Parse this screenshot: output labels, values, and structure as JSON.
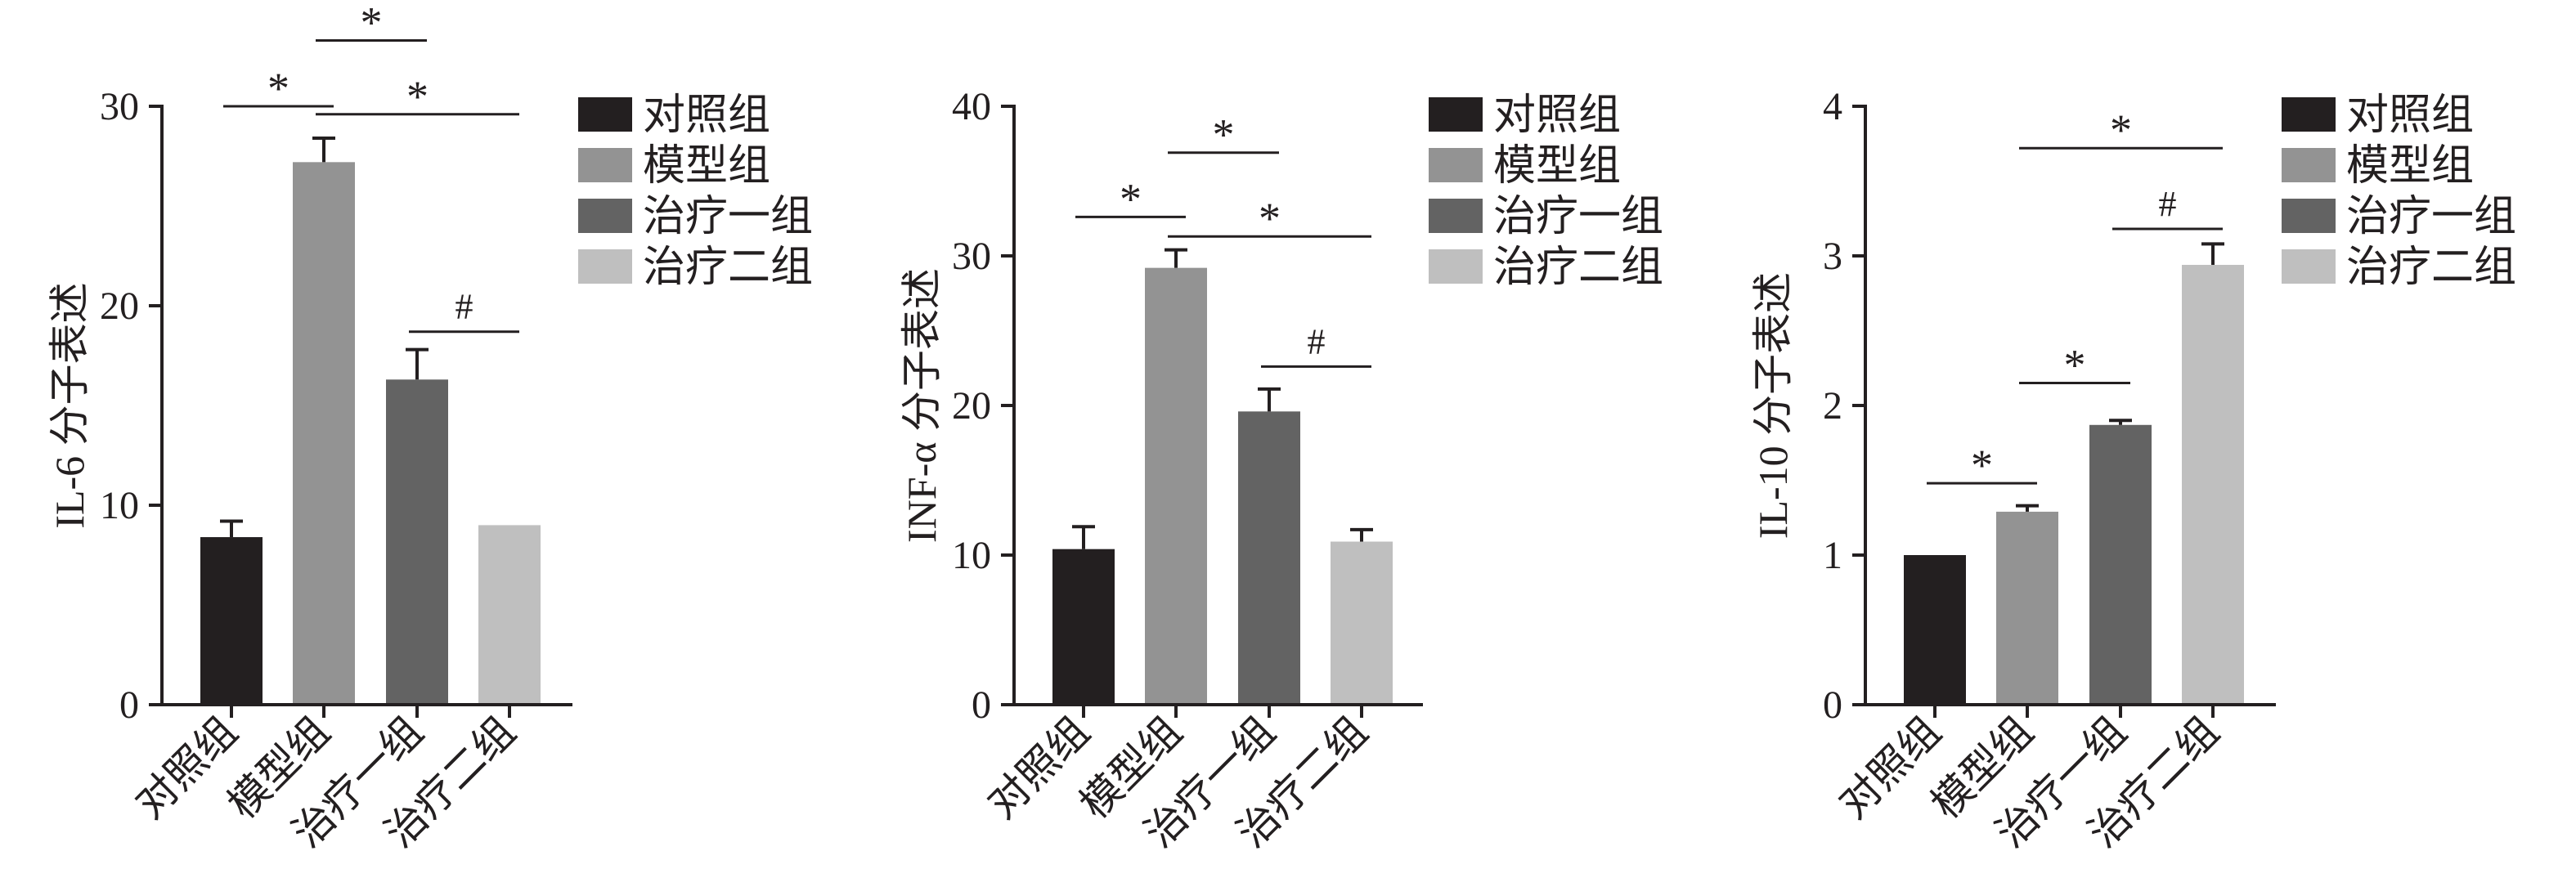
{
  "legend": {
    "labels": [
      "对照组",
      "模型组",
      "治疗一组",
      "治疗二组"
    ],
    "colors": [
      "#231f20",
      "#939393",
      "#636363",
      "#bfbfbf"
    ]
  },
  "chart_data": [
    {
      "type": "bar",
      "ylabel": "IL-6 分子表述",
      "ylim": [
        0,
        30
      ],
      "yticks": [
        0,
        10,
        20,
        30
      ],
      "ytick_labels": [
        "0",
        "10",
        "20",
        "30"
      ],
      "categories": [
        "对照组",
        "模型组",
        "治疗一组",
        "治疗二组"
      ],
      "values": [
        8.4,
        27.2,
        16.3,
        9.0
      ],
      "errors": [
        0.8,
        1.2,
        1.5,
        0
      ],
      "significance": [
        {
          "from": 0,
          "to": 1,
          "y": 30.0,
          "label": "*"
        },
        {
          "from": 1,
          "to": 2,
          "y": 33.3,
          "label": "*"
        },
        {
          "from": 1,
          "to": 3,
          "y": 29.6,
          "label": "*"
        },
        {
          "from": 2,
          "to": 3,
          "y": 18.7,
          "label": "#"
        }
      ]
    },
    {
      "type": "bar",
      "ylabel": "INF-α 分子表述",
      "ylim": [
        0,
        40
      ],
      "yticks": [
        0,
        10,
        20,
        30,
        40
      ],
      "ytick_labels": [
        "0",
        "10",
        "20",
        "30",
        "40"
      ],
      "categories": [
        "对照组",
        "模型组",
        "治疗一组",
        "治疗二组"
      ],
      "values": [
        10.4,
        29.2,
        19.6,
        10.9
      ],
      "errors": [
        1.5,
        1.2,
        1.5,
        0.8
      ],
      "significance": [
        {
          "from": 0,
          "to": 1,
          "y": 32.6,
          "label": "*"
        },
        {
          "from": 1,
          "to": 2,
          "y": 36.9,
          "label": "*"
        },
        {
          "from": 1,
          "to": 3,
          "y": 31.3,
          "label": "*"
        },
        {
          "from": 2,
          "to": 3,
          "y": 22.6,
          "label": "#"
        }
      ]
    },
    {
      "type": "bar",
      "ylabel": "IL-10 分子表述",
      "ylim": [
        0,
        4
      ],
      "yticks": [
        0,
        1,
        2,
        3,
        4
      ],
      "ytick_labels": [
        "0",
        "1",
        "2",
        "3",
        "4"
      ],
      "categories": [
        "对照组",
        "模型组",
        "治疗一组",
        "治疗二组"
      ],
      "values": [
        1.0,
        1.29,
        1.87,
        2.94
      ],
      "errors": [
        0,
        0.04,
        0.03,
        0.14
      ],
      "significance": [
        {
          "from": 0,
          "to": 1,
          "y": 1.48,
          "label": "*"
        },
        {
          "from": 1,
          "to": 2,
          "y": 2.15,
          "label": "*"
        },
        {
          "from": 1,
          "to": 3,
          "y": 3.72,
          "label": "*"
        },
        {
          "from": 2,
          "to": 3,
          "y": 3.18,
          "label": "#"
        }
      ]
    }
  ]
}
